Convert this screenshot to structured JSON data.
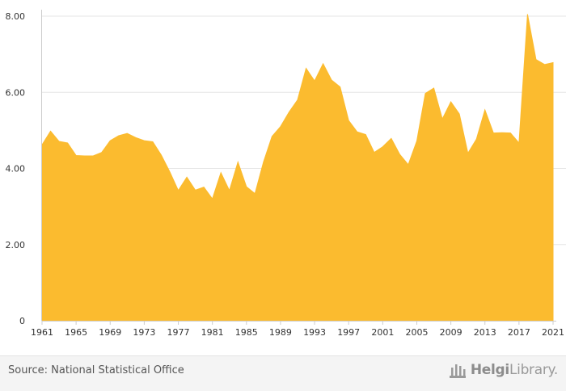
{
  "chart_data": {
    "type": "area",
    "title": "",
    "xlabel": "",
    "ylabel": "",
    "x": [
      1961,
      1962,
      1963,
      1964,
      1965,
      1966,
      1967,
      1968,
      1969,
      1970,
      1971,
      1972,
      1973,
      1974,
      1975,
      1976,
      1977,
      1978,
      1979,
      1980,
      1981,
      1982,
      1983,
      1984,
      1985,
      1986,
      1987,
      1988,
      1989,
      1990,
      1991,
      1992,
      1993,
      1994,
      1995,
      1996,
      1997,
      1998,
      1999,
      2000,
      2001,
      2002,
      2003,
      2004,
      2005,
      2006,
      2007,
      2008,
      2009,
      2010,
      2011,
      2012,
      2013,
      2014,
      2015,
      2016,
      2017,
      2018,
      2019,
      2020,
      2021
    ],
    "values": [
      4.62,
      4.98,
      4.71,
      4.67,
      4.34,
      4.33,
      4.33,
      4.42,
      4.73,
      4.86,
      4.92,
      4.81,
      4.73,
      4.7,
      4.35,
      3.91,
      3.42,
      3.77,
      3.43,
      3.51,
      3.2,
      3.89,
      3.42,
      4.17,
      3.52,
      3.34,
      4.17,
      4.84,
      5.1,
      5.48,
      5.8,
      6.63,
      6.3,
      6.75,
      6.32,
      6.14,
      5.26,
      4.96,
      4.89,
      4.42,
      4.57,
      4.79,
      4.37,
      4.1,
      4.72,
      5.97,
      6.11,
      5.3,
      5.75,
      5.43,
      4.4,
      4.77,
      5.54,
      4.93,
      4.94,
      4.93,
      4.67,
      8.05,
      6.86,
      6.73,
      6.78
    ],
    "xlim": [
      1961,
      2021
    ],
    "ylim": [
      0,
      8
    ],
    "yticks": [
      0,
      2,
      4,
      6,
      8
    ],
    "ytick_labels": [
      "0",
      "2.00",
      "4.00",
      "6.00",
      "8.00"
    ],
    "xticks": [
      1961,
      1965,
      1969,
      1973,
      1977,
      1981,
      1985,
      1989,
      1993,
      1997,
      2001,
      2005,
      2009,
      2013,
      2017,
      2021
    ],
    "xtick_labels": [
      "1961",
      "1965",
      "1969",
      "1973",
      "1977",
      "1981",
      "1985",
      "1989",
      "1993",
      "1997",
      "2001",
      "2005",
      "2009",
      "2013",
      "2017",
      "2021"
    ],
    "grid": true,
    "legend": "none",
    "fill_color": "#FBBB2F",
    "grid_color": "#E6E6E6"
  },
  "footer": {
    "source": "Source: National Statistical Office",
    "logo_bold": "Helgi",
    "logo_rest": "Library."
  }
}
